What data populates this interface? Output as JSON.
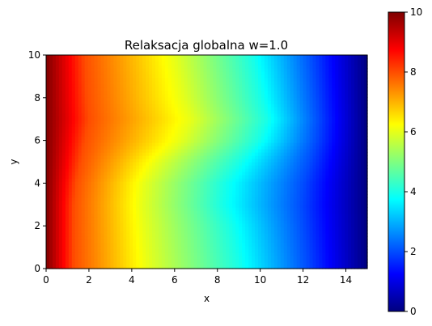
{
  "chart_data": {
    "type": "heatmap",
    "title": "Relaksacja globalna w=1.0",
    "xlabel": "x",
    "ylabel": "y",
    "xlim": [
      0,
      15
    ],
    "ylim": [
      0,
      10
    ],
    "xticks": [
      "0",
      "2",
      "4",
      "6",
      "8",
      "10",
      "12",
      "14"
    ],
    "yticks": [
      "0",
      "2",
      "4",
      "6",
      "8",
      "10"
    ],
    "colormap": "jet",
    "colorbar": {
      "min": 0,
      "max": 10,
      "ticks": [
        "0",
        "2",
        "4",
        "6",
        "8",
        "10"
      ]
    },
    "boundary_conditions": {
      "left_x0": 10,
      "right_x15": 0
    },
    "contour_x_positions": {
      "y": [
        0,
        2,
        3,
        4,
        5,
        6,
        7,
        8,
        10
      ],
      "value_8": [
        1.3,
        1.3,
        1.3,
        1.4,
        1.6,
        1.8,
        2.0,
        1.9,
        1.8
      ],
      "value_6": [
        4.8,
        4.6,
        4.5,
        4.6,
        5.2,
        6.3,
        6.8,
        6.4,
        6.0
      ],
      "value_4": [
        9.0,
        8.6,
        8.2,
        8.3,
        9.0,
        9.9,
        10.3,
        10.0,
        9.6
      ],
      "value_2": [
        12.2,
        12.0,
        11.9,
        12.0,
        12.3,
        12.6,
        12.7,
        12.6,
        12.4
      ]
    },
    "grid": false,
    "colors": {
      "jet_0": "#00007f",
      "jet_1": "#0000ff",
      "jet_2": "#007fff",
      "jet_3": "#00ffff",
      "jet_4": "#7fff7f",
      "jet_5": "#ffff00",
      "jet_6": "#ff7f00",
      "jet_7": "#ff0000",
      "jet_8": "#7f0000"
    }
  }
}
